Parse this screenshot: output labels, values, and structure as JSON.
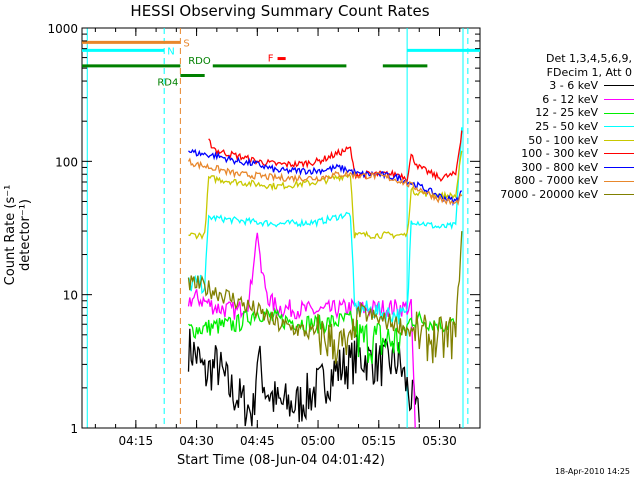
{
  "chart_data": {
    "type": "line",
    "title": "HESSI Observing Summary Count Rates",
    "xlabel": "Start Time (08-Jun-04 04:01:42)",
    "ylabel": "Count Rate (s⁻¹ detector⁻¹)",
    "yscale": "log",
    "ylim": [
      1,
      1000
    ],
    "xlim": [
      "04:01:42",
      "05:40:00"
    ],
    "x_ticks": [
      "04:15",
      "04:30",
      "04:45",
      "05:00",
      "05:15",
      "05:30"
    ],
    "y_ticks": [
      "1",
      "10",
      "100",
      "1000"
    ],
    "legend_header": [
      "Det 1,3,4,5,6,9,",
      "FDecim 1, Att 0"
    ],
    "series": [
      {
        "name": "3 - 6 keV",
        "color": "#000000",
        "x": [
          "04:28",
          "04:30",
          "04:32",
          "04:35",
          "04:38",
          "04:41",
          "04:44",
          "04:45",
          "04:47",
          "04:50",
          "04:55",
          "05:00",
          "05:05",
          "05:08",
          "05:10",
          "05:15",
          "05:20",
          "05:22",
          "05:25"
        ],
        "y": [
          4,
          3.5,
          2.5,
          3,
          2,
          1.6,
          1.3,
          3.5,
          2,
          1.5,
          1.5,
          2,
          2.8,
          3,
          3.5,
          3,
          3.2,
          2,
          1.1
        ]
      },
      {
        "name": "6 - 12 keV",
        "color": "#ff00ff",
        "x": [
          "04:28",
          "04:30",
          "04:35",
          "04:40",
          "04:43",
          "04:45",
          "04:46",
          "04:48",
          "04:50",
          "05:00",
          "05:08",
          "05:10",
          "05:20",
          "05:23",
          "05:24"
        ],
        "y": [
          9,
          9.5,
          8,
          7.5,
          9,
          30,
          15,
          9,
          8,
          7.5,
          8,
          7.8,
          8,
          8,
          1
        ]
      },
      {
        "name": "12 - 25 keV",
        "color": "#00ee00",
        "x": [
          "04:28",
          "04:30",
          "04:35",
          "04:40",
          "04:45",
          "04:50",
          "05:00",
          "05:08",
          "05:10",
          "05:15",
          "05:20",
          "05:23",
          "05:25",
          "05:30",
          "05:34"
        ],
        "y": [
          5.5,
          5.5,
          5.8,
          6,
          7.5,
          6.5,
          6,
          6.5,
          4.5,
          4.5,
          4.5,
          6.5,
          6.5,
          6,
          6
        ]
      },
      {
        "name": "25 - 50 keV",
        "color": "#00ffff",
        "x": [
          "04:28",
          "04:32",
          "04:33",
          "04:40",
          "04:50",
          "05:00",
          "05:07",
          "05:08",
          "05:09",
          "05:20",
          "05:22",
          "05:23",
          "05:30",
          "05:34",
          "05:35.5"
        ],
        "y": [
          12,
          12,
          38,
          36,
          34,
          35,
          40,
          40,
          8,
          7,
          7,
          36,
          32,
          33,
          180
        ]
      },
      {
        "name": "50 - 100 keV",
        "color": "#c8c800",
        "x": [
          "04:28",
          "04:30",
          "04:32",
          "04:33",
          "04:40",
          "04:50",
          "05:00",
          "05:08",
          "05:09",
          "05:20",
          "05:22",
          "05:23",
          "05:30",
          "05:34",
          "05:35.5"
        ],
        "y": [
          28,
          28,
          28,
          75,
          70,
          65,
          70,
          80,
          28,
          28,
          28,
          60,
          55,
          55,
          120
        ]
      },
      {
        "name": "100 - 300 keV",
        "color": "#ff0000",
        "x": [
          "04:33",
          "04:35",
          "04:40",
          "04:45",
          "04:50",
          "04:55",
          "05:00",
          "05:05",
          "05:08",
          "05:09",
          "05:20",
          "05:22",
          "05:23",
          "05:25",
          "05:30",
          "05:34",
          "05:35.5"
        ],
        "y": [
          140,
          120,
          110,
          100,
          95,
          95,
          100,
          115,
          125,
          80,
          80,
          75,
          110,
          90,
          75,
          80,
          170
        ]
      },
      {
        "name": "300 - 800 keV",
        "color": "#0000ff",
        "x": [
          "04:28",
          "04:30",
          "04:35",
          "04:40",
          "04:45",
          "04:50",
          "04:55",
          "05:00",
          "05:05",
          "05:08",
          "05:10",
          "05:15",
          "05:20",
          "05:25",
          "05:30",
          "05:34",
          "05:35.5"
        ],
        "y": [
          120,
          115,
          110,
          100,
          95,
          85,
          85,
          85,
          90,
          85,
          80,
          80,
          75,
          65,
          55,
          50,
          60
        ]
      },
      {
        "name": "800 - 7000 keV",
        "color": "#e8872c",
        "x": [
          "04:28",
          "04:30",
          "04:35",
          "04:40",
          "04:45",
          "04:50",
          "04:55",
          "05:00",
          "05:05",
          "05:08",
          "05:10",
          "05:15",
          "05:20",
          "05:25",
          "05:30",
          "05:34",
          "05:35.5"
        ],
        "y": [
          100,
          95,
          88,
          80,
          78,
          75,
          75,
          75,
          80,
          80,
          78,
          78,
          72,
          62,
          52,
          48,
          55
        ]
      },
      {
        "name": "7000 - 20000 keV",
        "color": "#808000",
        "x": [
          "04:28",
          "04:30",
          "04:35",
          "04:40",
          "04:45",
          "04:50",
          "04:55",
          "05:00",
          "05:05",
          "05:08",
          "05:10",
          "05:15",
          "05:20",
          "05:25",
          "05:30",
          "05:34",
          "05:35.5"
        ],
        "y": [
          12,
          12,
          10.5,
          9,
          7.5,
          6,
          5.5,
          5,
          4.2,
          3.8,
          7.5,
          6.5,
          6,
          4.8,
          4.5,
          5,
          30
        ]
      }
    ],
    "annotations": [
      {
        "label": "S",
        "color": "#e8872c",
        "segments": [
          [
            "04:01:42",
            "04:26"
          ]
        ],
        "y": 780
      },
      {
        "label": "N",
        "color": "#00ffff",
        "segments": [
          [
            "04:01:42",
            "04:22"
          ],
          [
            "05:22",
            "05:40"
          ]
        ],
        "y": 680
      },
      {
        "label": "RDO",
        "color": "#008000",
        "segments": [
          [
            "04:01:42",
            "04:26"
          ],
          [
            "04:34",
            "05:07"
          ],
          [
            "05:16",
            "05:27"
          ]
        ],
        "y": 520
      },
      {
        "label": "RD4",
        "color": "#008000",
        "segments": [
          [
            "04:26",
            "04:32"
          ]
        ],
        "y": 440
      },
      {
        "label": "F",
        "color": "#ff0000",
        "segments": [
          [
            "04:50",
            "04:52"
          ]
        ],
        "y": 590
      }
    ],
    "vlines": [
      {
        "x": "04:03",
        "color": "#00ffff",
        "dash": false
      },
      {
        "x": "04:22",
        "color": "#00ffff",
        "dash": true
      },
      {
        "x": "04:26",
        "color": "#e8872c",
        "dash": true
      },
      {
        "x": "05:22",
        "color": "#00ffff",
        "dash": false
      },
      {
        "x": "05:35.8",
        "color": "#00ffff",
        "dash": false
      },
      {
        "x": "05:37",
        "color": "#00ffff",
        "dash": true
      }
    ],
    "grid": false,
    "legend_position": "right"
  },
  "datestamp": "18-Apr-2010 14:25"
}
